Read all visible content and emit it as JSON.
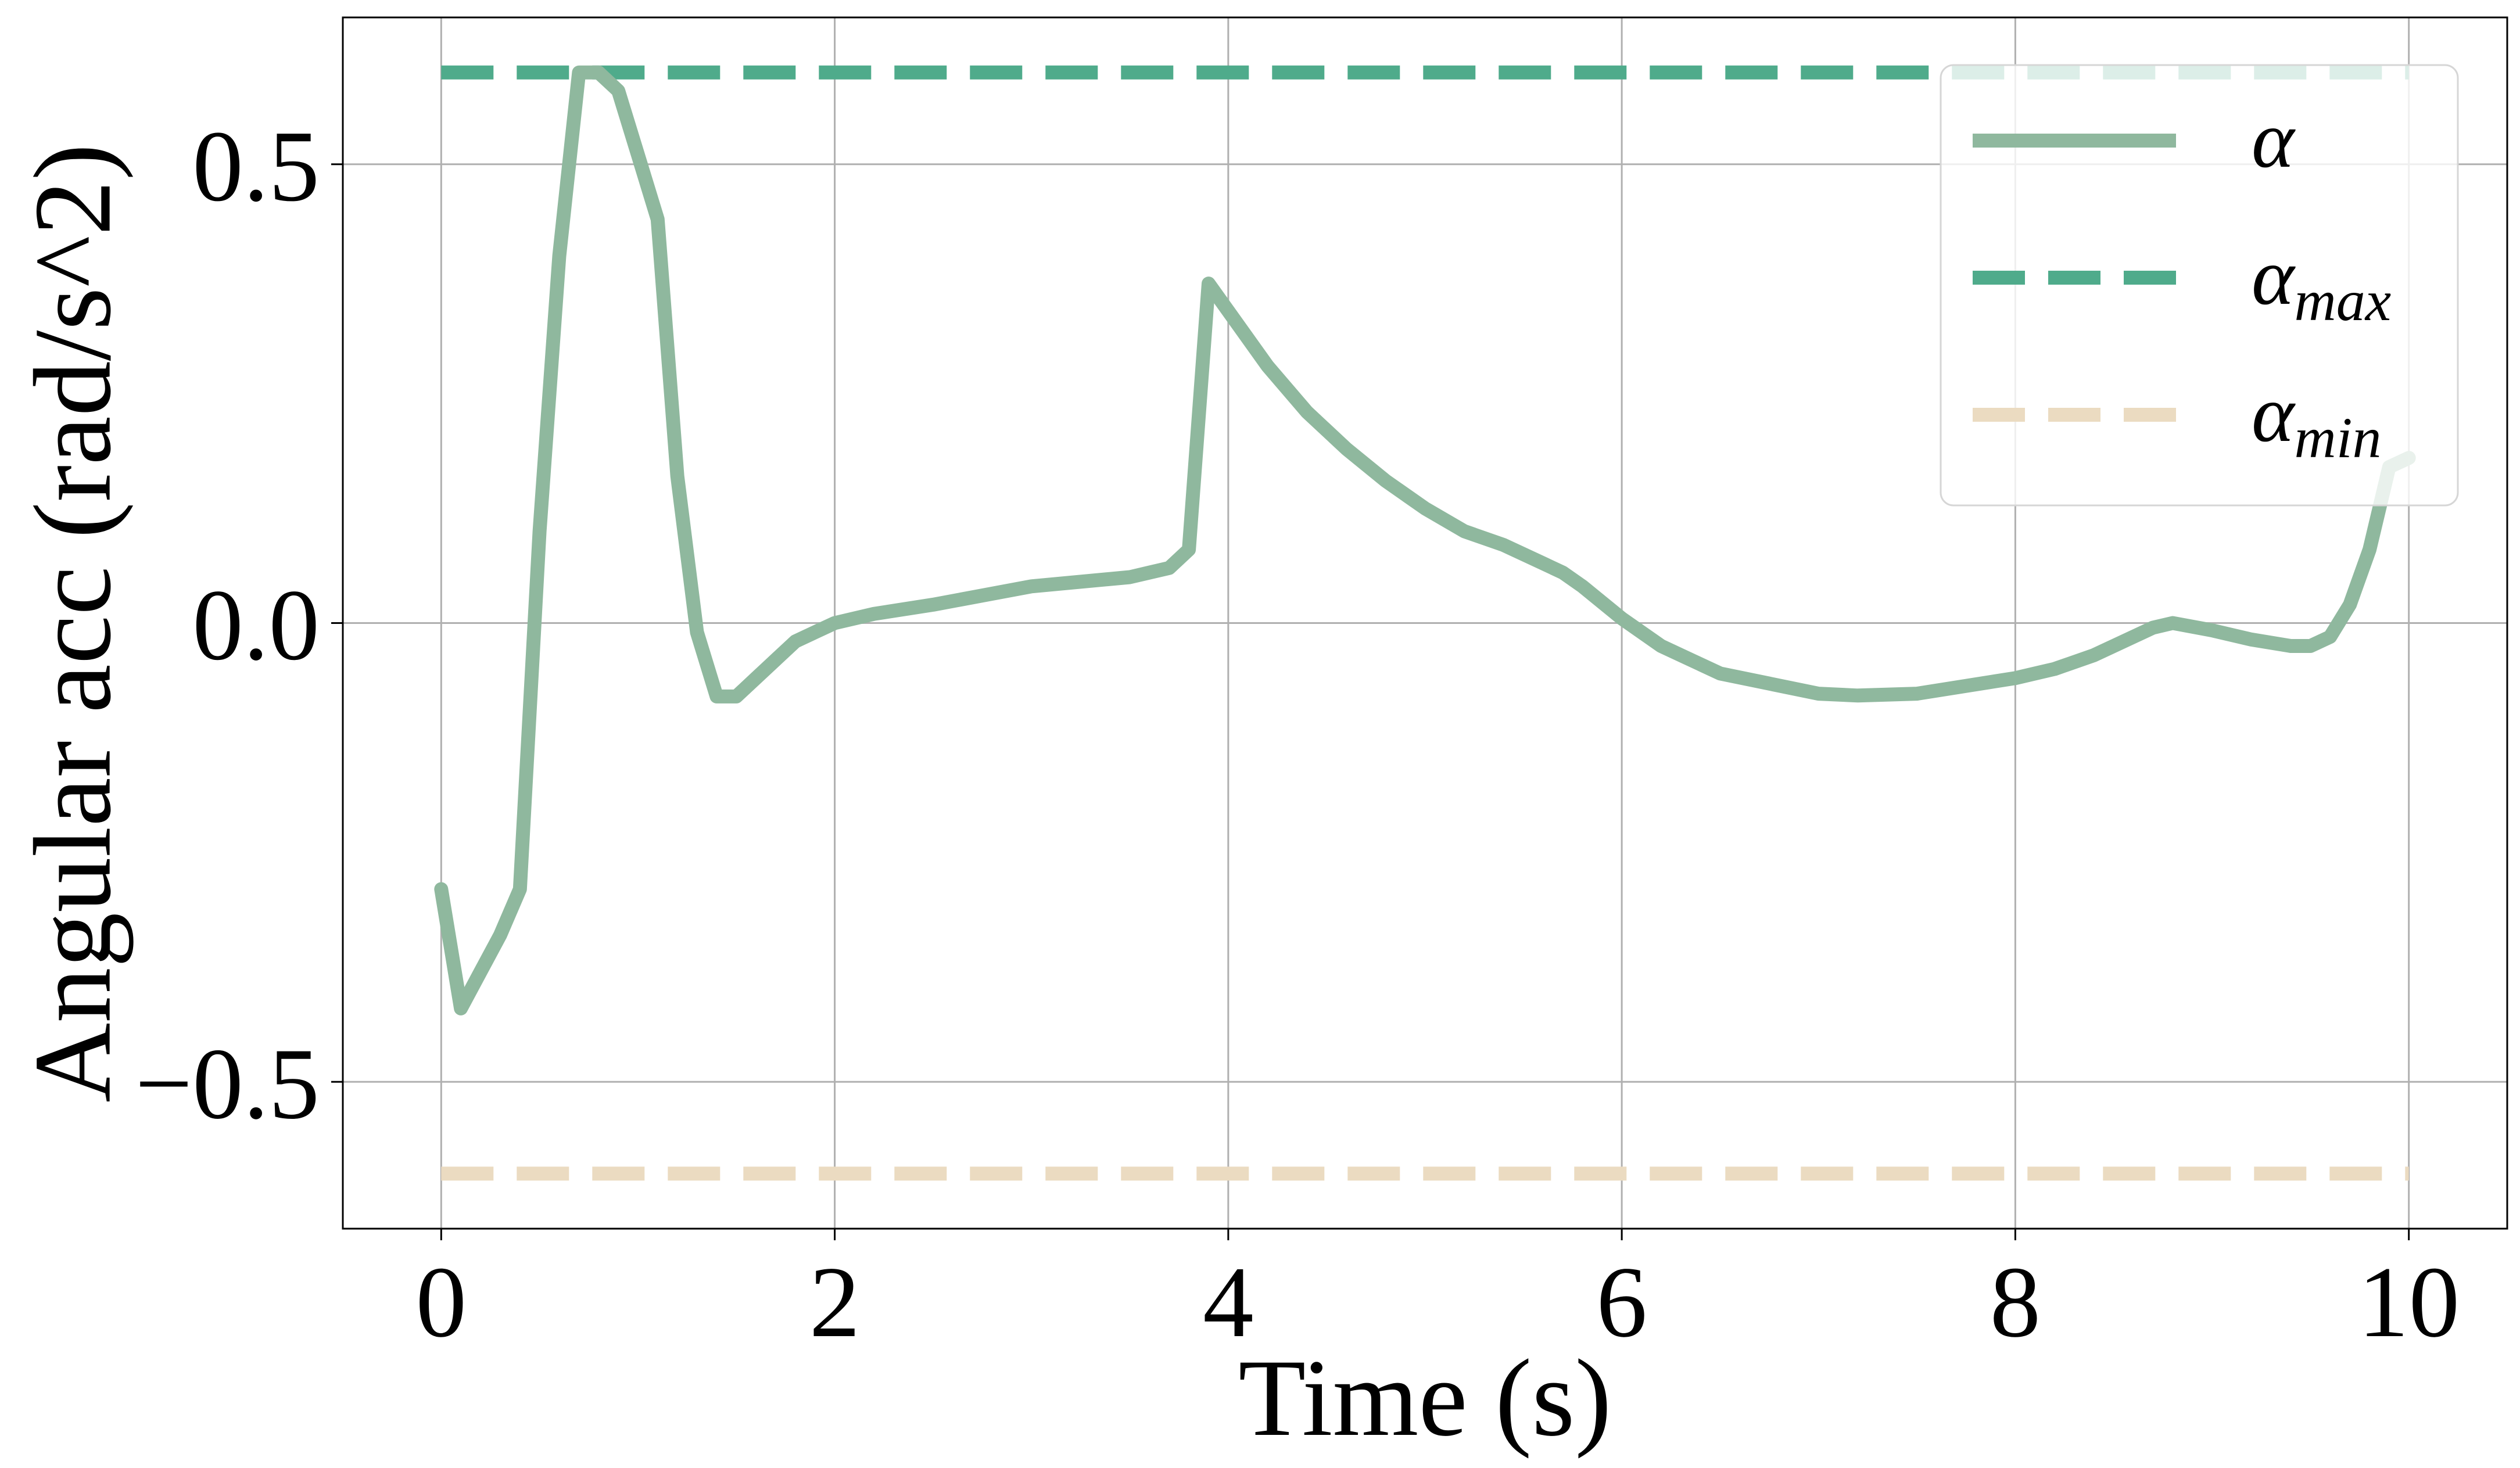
{
  "chart_data": {
    "type": "line",
    "xlabel": "Time (s)",
    "ylabel": "Angular acc (rad/s^2)",
    "xlim": [
      -0.5,
      10.5
    ],
    "ylim": [
      -0.66,
      0.66
    ],
    "x_ticks": [
      0,
      2,
      4,
      6,
      8,
      10
    ],
    "x_tick_labels": [
      "0",
      "2",
      "4",
      "6",
      "8",
      "10"
    ],
    "y_ticks": [
      -0.5,
      0.0,
      0.5
    ],
    "y_tick_labels": [
      "−0.5",
      "0.0",
      "0.5"
    ],
    "grid": true,
    "legend_position": "top-right",
    "series": [
      {
        "name": "α",
        "color": "#8fb89e",
        "style": "solid",
        "x": [
          0,
          0.1,
          0.2,
          0.3,
          0.4,
          0.5,
          0.6,
          0.7,
          0.8,
          0.9,
          1.0,
          1.1,
          1.2,
          1.3,
          1.4,
          1.5,
          1.6,
          1.7,
          1.8,
          1.9,
          2.0,
          2.2,
          2.5,
          3.0,
          3.5,
          3.6,
          3.7,
          3.8,
          3.9,
          4.0,
          4.2,
          4.4,
          4.6,
          4.8,
          5.0,
          5.2,
          5.4,
          5.6,
          5.7,
          5.8,
          6.0,
          6.2,
          6.5,
          7.0,
          7.2,
          7.5,
          8.0,
          8.2,
          8.4,
          8.5,
          8.7,
          8.8,
          9.0,
          9.2,
          9.4,
          9.5,
          9.6,
          9.7,
          9.8,
          9.9,
          10.0
        ],
        "values": [
          -0.29,
          -0.42,
          -0.38,
          -0.34,
          -0.29,
          0.1,
          0.4,
          0.6,
          0.6,
          0.58,
          0.51,
          0.44,
          0.16,
          -0.01,
          -0.08,
          -0.08,
          -0.06,
          -0.04,
          -0.02,
          -0.01,
          0.0,
          0.01,
          0.02,
          0.04,
          0.05,
          0.055,
          0.06,
          0.08,
          0.37,
          0.34,
          0.28,
          0.23,
          0.19,
          0.155,
          0.125,
          0.1,
          0.085,
          0.065,
          0.055,
          0.04,
          0.005,
          -0.025,
          -0.055,
          -0.077,
          -0.079,
          -0.077,
          -0.06,
          -0.05,
          -0.035,
          -0.025,
          -0.005,
          0.0,
          -0.008,
          -0.018,
          -0.025,
          -0.025,
          -0.015,
          0.02,
          0.08,
          0.17,
          0.18
        ]
      },
      {
        "name": "α",
        "subscript": "max",
        "color": "#4fab8b",
        "style": "dashed",
        "x": [
          0,
          10
        ],
        "values": [
          0.6,
          0.6
        ]
      },
      {
        "name": "α",
        "subscript": "min",
        "color": "#ebdbc1",
        "style": "dashed",
        "x": [
          0,
          10
        ],
        "values": [
          -0.6,
          -0.6
        ]
      }
    ]
  }
}
